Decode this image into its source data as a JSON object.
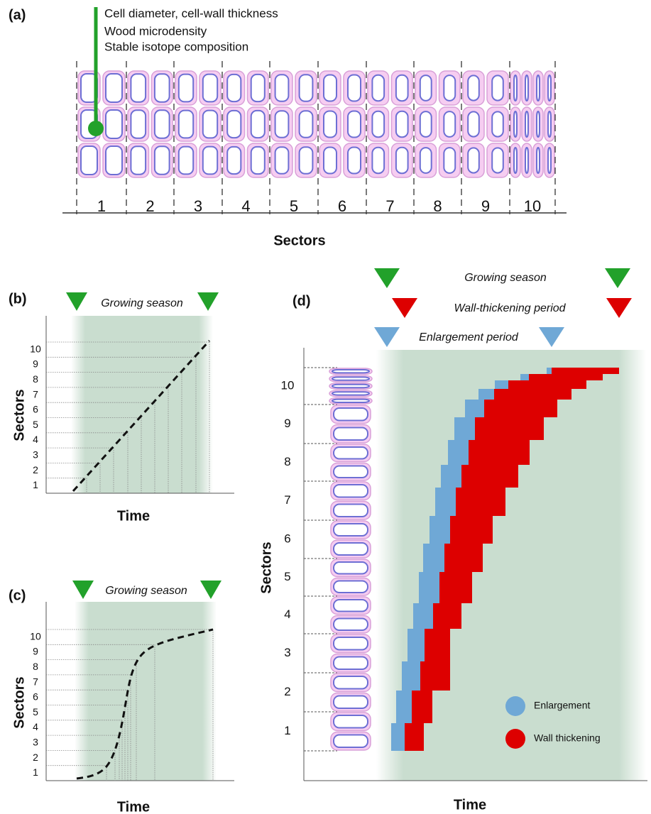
{
  "panel_a": {
    "label": "(a)",
    "annotations": [
      "Cell diameter, cell-wall thickness",
      "Wood microdensity",
      "Stable isotope composition"
    ],
    "sectors": [
      1,
      2,
      3,
      4,
      5,
      6,
      7,
      8,
      9,
      10
    ],
    "axis_label": "Sectors"
  },
  "panel_b": {
    "label": "(b)",
    "season": "Growing season",
    "sectors": [
      1,
      2,
      3,
      4,
      5,
      6,
      7,
      8,
      9,
      10
    ],
    "y_label": "Sectors",
    "x_label": "Time"
  },
  "panel_c": {
    "label": "(c)",
    "season": "Growing season",
    "sectors": [
      1,
      2,
      3,
      4,
      5,
      6,
      7,
      8,
      9,
      10
    ],
    "y_label": "Sectors",
    "x_label": "Time"
  },
  "panel_d": {
    "label": "(d)",
    "growing_season": "Growing season",
    "wall_thickening_period": "Wall-thickening period",
    "enlargement_period": "Enlargement period",
    "sectors": [
      1,
      2,
      3,
      4,
      5,
      6,
      7,
      8,
      9,
      10
    ],
    "y_label": "Sectors",
    "x_label": "Time",
    "legend": [
      {
        "name": "Enlargement",
        "color": "#6fa8d6"
      },
      {
        "name": "Wall thickening",
        "color": "#dd0000"
      }
    ]
  }
}
